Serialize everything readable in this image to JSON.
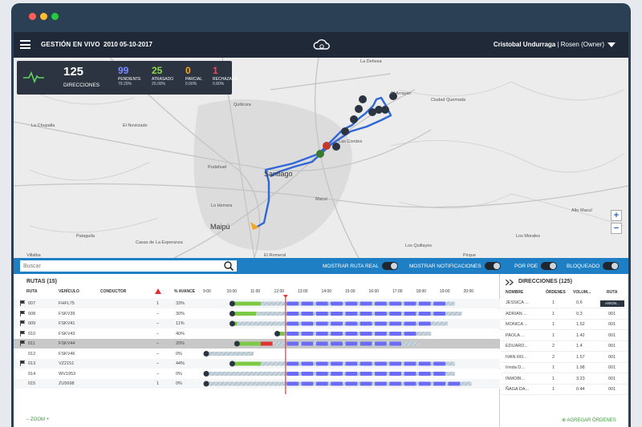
{
  "header": {
    "title": "GESTIÓN EN VIVO",
    "date": "2010 05-10-2017",
    "user_name": "Cristobal Undurraga",
    "user_role": " | Rosen (Owner)"
  },
  "stats": {
    "total_value": "125",
    "total_label": "DIRECCIONES",
    "items": [
      {
        "value": "99",
        "label": "PENDIENTE",
        "percent": "79.20%",
        "color": "#7b8cff"
      },
      {
        "value": "25",
        "label": "ATRASADO",
        "percent": "20.00%",
        "color": "#8bd84a"
      },
      {
        "value": "0",
        "label": "PARCIAL",
        "percent": "0.00%",
        "color": "#f5a623"
      },
      {
        "value": "1",
        "label": "RECHAZADO",
        "percent": "0.80%",
        "color": "#e84a6a"
      }
    ]
  },
  "map": {
    "labels": [
      {
        "text": "La Dehesa"
      },
      {
        "text": "El Arrayan"
      },
      {
        "text": "Ciudad Quemada"
      },
      {
        "text": "Quilicura"
      },
      {
        "text": "La Chupalla"
      },
      {
        "text": "El Noviciado"
      },
      {
        "text": "Las Condes"
      },
      {
        "text": "Pudahuel"
      },
      {
        "text": "Santiago"
      },
      {
        "text": "Maipú"
      },
      {
        "text": "Macul"
      },
      {
        "text": "Alto Macul"
      },
      {
        "text": "Los Morales"
      },
      {
        "text": "Lo Herrera"
      },
      {
        "text": "Casas de La Esperanza"
      },
      {
        "text": "Pataguila"
      },
      {
        "text": "Los Quillayes"
      },
      {
        "text": "El Romeral"
      },
      {
        "text": "Villalba"
      },
      {
        "text": "Pirque"
      }
    ],
    "zoom_in": "+",
    "zoom_out": "−"
  },
  "toolbar": {
    "search_placeholder": "Buscar",
    "toggles": [
      {
        "label": "MOSTRAR RUTA REAL"
      },
      {
        "label": "MOSTRAR NOTIFICACIONES"
      },
      {
        "label": "POR PDE"
      },
      {
        "label": "BLOQUEADO"
      }
    ]
  },
  "routes": {
    "title": "RUTAS (15)",
    "columns": [
      "RUTA",
      "VEHÍCULO",
      "CONDUCTOR",
      "% AVANCE"
    ],
    "times": [
      "9:00",
      "10:00",
      "11:00",
      "12:00",
      "13:00",
      "14:00",
      "15:00",
      "16:00",
      "17:00",
      "18:00",
      "19:00",
      "20:00"
    ],
    "rows": [
      {
        "ruta": "007",
        "vehiculo": "FHFL75",
        "alert": "1",
        "avance": "33%",
        "start": 10.1,
        "green_end": 11.3,
        "end": 19.5,
        "flag": true
      },
      {
        "ruta": "008",
        "vehiculo": "FSKV39",
        "alert": "–",
        "avance": "30%",
        "start": 10.1,
        "green_end": 11.1,
        "end": 19.8,
        "flag": true
      },
      {
        "ruta": "009",
        "vehiculo": "FSKV41",
        "alert": "–",
        "avance": "11%",
        "start": 10.1,
        "green_end": 10.3,
        "end": 19.2,
        "flag": true
      },
      {
        "ruta": "010",
        "vehiculo": "FSKV43",
        "alert": "–",
        "avance": "40%",
        "start": 12.0,
        "green_end": 12.3,
        "end": 18.5,
        "flag": true
      },
      {
        "ruta": "011",
        "vehiculo": "FSKV44",
        "alert": "–",
        "avance": "20%",
        "start": 10.3,
        "green_end": 11.3,
        "end": 18.0,
        "flag": true
      },
      {
        "ruta": "012",
        "vehiculo": "FSKV46",
        "alert": "–",
        "avance": "0%",
        "start": 9.0,
        "green_end": 9.0,
        "end": 11.0,
        "flag": false
      },
      {
        "ruta": "013",
        "vehiculo": "VZ2151",
        "alert": "–",
        "avance": "44%",
        "start": 10.1,
        "green_end": 11.3,
        "end": 19.5,
        "flag": true
      },
      {
        "ruta": "014",
        "vehiculo": "WV1953",
        "alert": "–",
        "avance": "0%",
        "start": 9.0,
        "green_end": 9.0,
        "end": 19.5,
        "flag": false
      },
      {
        "ruta": "015",
        "vehiculo": "ZU5698",
        "alert": "1",
        "avance": "0%",
        "start": 9.0,
        "green_end": 9.0,
        "end": 20.2,
        "flag": false
      }
    ],
    "zoom_link": "– ZOOM +"
  },
  "directions": {
    "title": "DIRECCIONES (125)",
    "columns": [
      "NOMBRE",
      "ÓRDENES",
      "VOLUM...",
      "RUTA"
    ],
    "assign_label": "ASIGN...",
    "rows": [
      {
        "nombre": "JESSICA ...",
        "ordenes": "1",
        "vol": "0.6",
        "ruta": ""
      },
      {
        "nombre": "ADRIAN ...",
        "ordenes": "1",
        "vol": "0.3",
        "ruta": "001"
      },
      {
        "nombre": "MONICA ...",
        "ordenes": "1",
        "vol": "1.62",
        "ruta": "001"
      },
      {
        "nombre": "PAOLA ...",
        "ordenes": "1",
        "vol": "1.42",
        "ruta": "001"
      },
      {
        "nombre": "EDUARD...",
        "ordenes": "2",
        "vol": "1.4",
        "ruta": "001"
      },
      {
        "nombre": "IVAN RO...",
        "ordenes": "2",
        "vol": "1.57",
        "ruta": "001"
      },
      {
        "nombre": "Irinda D...",
        "ordenes": "1",
        "vol": "1.98",
        "ruta": "001"
      },
      {
        "nombre": "INMOBI...",
        "ordenes": "1",
        "vol": "3.23",
        "ruta": "001"
      },
      {
        "nombre": "ÑAGA DA...",
        "ordenes": "1",
        "vol": "0.44",
        "ruta": "001"
      }
    ],
    "add_label": "AGREGAR ÓRDENES"
  }
}
